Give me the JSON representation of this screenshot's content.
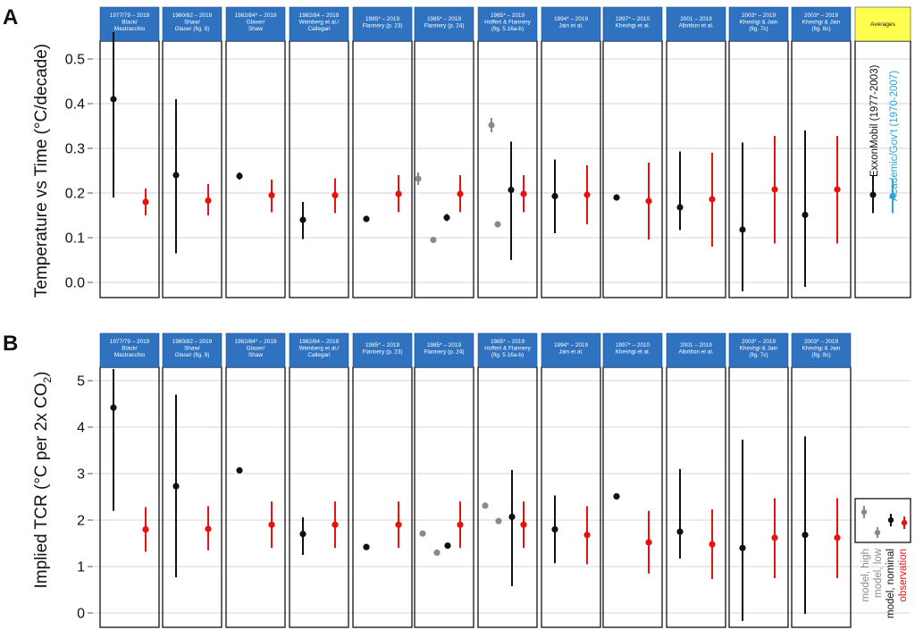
{
  "colors": {
    "header_blue": "#2f73c0",
    "header_text": "#ffffff",
    "averages_header": "#ffff4d",
    "nominal": "#111111",
    "observation": "#e8110e",
    "high_low": "#8a8a8a",
    "academic": "#29a6d9",
    "grid": "#d6d6d6"
  },
  "headers": [
    {
      "line1": "1977/79 – 2019",
      "line2": "Black/",
      "line3": "Mastracchio"
    },
    {
      "line1": "1980/82 – 2019",
      "line2": "Shaw/",
      "line3": "Glaser (fig. 9)"
    },
    {
      "line1": "1982/84* – 2019",
      "line2": "Glaser/",
      "line3": "Shaw"
    },
    {
      "line1": "1982/84 – 2019",
      "line2": "Weinberg et al./",
      "line3": "Callegari"
    },
    {
      "line1": "1985* – 2019",
      "line2": "Flannery (p. 23)",
      "line3": ""
    },
    {
      "line1": "1985* – 2019",
      "line2": "Flannery (p. 24)",
      "line3": ""
    },
    {
      "line1": "1985* – 2019",
      "line2": "Hoffert & Flannery",
      "line3": "(fig. 5.16a-b)"
    },
    {
      "line1": "1994* – 2019",
      "line2": "Jain et al.",
      "line3": ""
    },
    {
      "line1": "1997* – 2010",
      "line2": "Kheshgi et al.",
      "line3": ""
    },
    {
      "line1": "2001 – 2019",
      "line2": "Albritton et al.",
      "line3": ""
    },
    {
      "line1": "2003* – 2019",
      "line2": "Kheshgi & Jain",
      "line3": "(fig. 7c)"
    },
    {
      "line1": "2003* – 2019",
      "line2": "Kheshgi & Jain",
      "line3": "(fig. 8c)"
    }
  ],
  "averages_label": "Averages",
  "legend": {
    "a_exxon": "ExxonMobil (1977-2003)",
    "a_academic": "Academic/Gov't (1970-2007)",
    "b_items": [
      "model, high",
      "model, low",
      "model, nominal",
      "observation"
    ]
  },
  "chart_data": [
    {
      "panel": "A",
      "type": "scatter",
      "ylabel": "Temperature vs Time (°C/decade)",
      "ylim": [
        -0.03,
        0.56
      ],
      "yticks": [
        0.0,
        0.1,
        0.2,
        0.3,
        0.4,
        0.5
      ],
      "ytick_labels": [
        "0.0",
        "0.1",
        "0.2",
        "0.3",
        "0.4",
        "0.5"
      ],
      "grid": true,
      "legend_position": "right, in Averages panel",
      "columns": [
        {
          "nominal": {
            "y": 0.41,
            "lo": 0.19,
            "hi": 0.56
          },
          "observation": {
            "y": 0.18,
            "lo": 0.15,
            "hi": 0.21
          }
        },
        {
          "nominal": {
            "y": 0.24,
            "lo": 0.065,
            "hi": 0.41
          },
          "observation": {
            "y": 0.183,
            "lo": 0.15,
            "hi": 0.22
          }
        },
        {
          "nominal": {
            "y": 0.238,
            "lo": 0.23,
            "hi": 0.246
          },
          "observation": {
            "y": 0.195,
            "lo": 0.157,
            "hi": 0.23
          }
        },
        {
          "nominal": {
            "y": 0.14,
            "lo": 0.097,
            "hi": 0.18
          },
          "observation": {
            "y": 0.195,
            "lo": 0.155,
            "hi": 0.233
          }
        },
        {
          "nominal": {
            "y": 0.142
          },
          "observation": {
            "y": 0.198,
            "lo": 0.157,
            "hi": 0.24
          }
        },
        {
          "high": {
            "y": 0.232,
            "lo": 0.218,
            "hi": 0.246
          },
          "low": {
            "y": 0.095
          },
          "nominal": {
            "y": 0.145,
            "lo": 0.137,
            "hi": 0.153
          },
          "observation": {
            "y": 0.198,
            "lo": 0.157,
            "hi": 0.24
          }
        },
        {
          "high": {
            "y": 0.352,
            "lo": 0.336,
            "hi": 0.368
          },
          "low": {
            "y": 0.13
          },
          "nominal": {
            "y": 0.207,
            "lo": 0.05,
            "hi": 0.315
          },
          "observation": {
            "y": 0.198,
            "lo": 0.157,
            "hi": 0.24
          }
        },
        {
          "nominal": {
            "y": 0.193,
            "lo": 0.11,
            "hi": 0.275
          },
          "observation": {
            "y": 0.196,
            "lo": 0.13,
            "hi": 0.262
          }
        },
        {
          "nominal": {
            "y": 0.19
          },
          "observation": {
            "y": 0.182,
            "lo": 0.096,
            "hi": 0.268
          }
        },
        {
          "nominal": {
            "y": 0.168,
            "lo": 0.117,
            "hi": 0.293
          },
          "observation": {
            "y": 0.186,
            "lo": 0.08,
            "hi": 0.29
          }
        },
        {
          "nominal": {
            "y": 0.118,
            "lo": -0.02,
            "hi": 0.313
          },
          "observation": {
            "y": 0.208,
            "lo": 0.087,
            "hi": 0.328
          }
        },
        {
          "nominal": {
            "y": 0.151,
            "lo": -0.01,
            "hi": 0.34
          },
          "observation": {
            "y": 0.208,
            "lo": 0.087,
            "hi": 0.328
          }
        }
      ],
      "averages": {
        "exxon": {
          "y": 0.196,
          "lo": 0.155,
          "hi": 0.24
        },
        "academic": {
          "y": 0.193,
          "lo": 0.155,
          "hi": 0.23
        }
      }
    },
    {
      "panel": "B",
      "type": "scatter",
      "ylabel": "Implied TCR (°C per 2x CO2)",
      "ylim": [
        -0.3,
        5.25
      ],
      "yticks": [
        0,
        1,
        2,
        3,
        4,
        5
      ],
      "ytick_labels": [
        "0",
        "1",
        "2",
        "3",
        "4",
        "5"
      ],
      "grid": true,
      "legend_position": "bottom-right",
      "columns": [
        {
          "nominal": {
            "y": 4.42,
            "lo": 2.2,
            "hi": 5.25
          },
          "observation": {
            "y": 1.8,
            "lo": 1.32,
            "hi": 2.28
          }
        },
        {
          "nominal": {
            "y": 2.73,
            "lo": 0.77,
            "hi": 4.7
          },
          "observation": {
            "y": 1.81,
            "lo": 1.35,
            "hi": 2.3
          }
        },
        {
          "nominal": {
            "y": 3.07
          },
          "observation": {
            "y": 1.9,
            "lo": 1.4,
            "hi": 2.4
          }
        },
        {
          "nominal": {
            "y": 1.7,
            "lo": 1.25,
            "hi": 2.06
          },
          "observation": {
            "y": 1.9,
            "lo": 1.4,
            "hi": 2.4
          }
        },
        {
          "nominal": {
            "y": 1.42
          },
          "observation": {
            "y": 1.9,
            "lo": 1.4,
            "hi": 2.4
          }
        },
        {
          "high": {
            "y": 1.71
          },
          "low": {
            "y": 1.3
          },
          "nominal": {
            "y": 1.45
          },
          "observation": {
            "y": 1.9,
            "lo": 1.4,
            "hi": 2.4
          }
        },
        {
          "high": {
            "y": 2.31
          },
          "low": {
            "y": 1.98
          },
          "nominal": {
            "y": 2.07,
            "lo": 0.58,
            "hi": 3.08
          },
          "observation": {
            "y": 1.9,
            "lo": 1.4,
            "hi": 2.4
          }
        },
        {
          "nominal": {
            "y": 1.8,
            "lo": 1.07,
            "hi": 2.53
          },
          "observation": {
            "y": 1.68,
            "lo": 1.05,
            "hi": 2.3
          }
        },
        {
          "nominal": {
            "y": 2.51
          },
          "observation": {
            "y": 1.52,
            "lo": 0.85,
            "hi": 2.2
          }
        },
        {
          "nominal": {
            "y": 1.75,
            "lo": 1.17,
            "hi": 3.1
          },
          "observation": {
            "y": 1.48,
            "lo": 0.73,
            "hi": 2.23
          }
        },
        {
          "nominal": {
            "y": 1.4,
            "lo": -0.17,
            "hi": 3.73
          },
          "observation": {
            "y": 1.62,
            "lo": 0.75,
            "hi": 2.47
          }
        },
        {
          "nominal": {
            "y": 1.68,
            "lo": -0.02,
            "hi": 3.8
          },
          "observation": {
            "y": 1.62,
            "lo": 0.75,
            "hi": 2.47
          }
        }
      ]
    }
  ]
}
